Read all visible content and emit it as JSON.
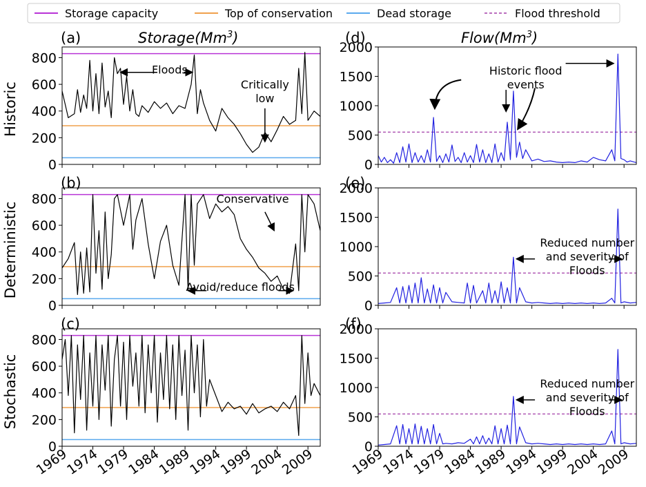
{
  "legend": {
    "items": [
      {
        "label": "Storage capacity",
        "color": "#b833d6",
        "dashed": false
      },
      {
        "label": "Top of conservation",
        "color": "#f0a04c",
        "dashed": false
      },
      {
        "label": "Dead storage",
        "color": "#5aa9ee",
        "dashed": false
      },
      {
        "label": "Flood threshold",
        "color": "#a33ca8",
        "dashed": true
      }
    ]
  },
  "columns": {
    "storage_title": "Storage(Mm",
    "flow_title": "Flow(Mm",
    "unit_exponent": "3"
  },
  "rows": [
    "Historic",
    "Deterministic",
    "Stochastic"
  ],
  "chart_data": [
    {
      "type": "line",
      "panel": "(a)",
      "title": "Storage(Mm3)",
      "row": "Historic",
      "xlabel": "",
      "ylabel": "Historic",
      "xlim": [
        1969,
        2011
      ],
      "ylim": [
        0,
        880
      ],
      "xticks": [
        1969,
        1974,
        1979,
        1984,
        1989,
        1994,
        1999,
        2004,
        2009
      ],
      "yticks": [
        0,
        200,
        400,
        600,
        800
      ],
      "reference_lines": {
        "Storage capacity": 830,
        "Top of conservation": 290,
        "Dead storage": 50
      },
      "series": [
        {
          "x": [
            1969.0,
            1970.0,
            1971.0,
            1971.5,
            1972.0,
            1972.5,
            1973.0,
            1973.5,
            1974.0,
            1974.5,
            1975.0,
            1975.5,
            1976.0,
            1976.5,
            1977.0,
            1977.5,
            1978.0,
            1978.5,
            1979.0,
            1979.5,
            1980.0,
            1980.5,
            1981.0,
            1981.5,
            1982.0,
            1983.0,
            1984.0,
            1985.0,
            1986.0,
            1987.0,
            1988.0,
            1989.0,
            1990.0,
            1990.5,
            1991.0,
            1991.5,
            1992.0,
            1993.0,
            1994.0,
            1995.0,
            1996.0,
            1997.0,
            1998.0,
            1999.0,
            2000.0,
            2001.0,
            2002.0,
            2003.0,
            2004.0,
            2005.0,
            2006.0,
            2007.0,
            2007.5,
            2008.0,
            2008.5,
            2009.0,
            2010.0,
            2011.0
          ],
          "values": [
            550,
            350,
            380,
            560,
            390,
            520,
            420,
            780,
            400,
            680,
            380,
            760,
            430,
            550,
            350,
            800,
            680,
            720,
            450,
            660,
            400,
            560,
            380,
            360,
            440,
            390,
            470,
            420,
            460,
            380,
            440,
            420,
            600,
            820,
            380,
            560,
            460,
            330,
            250,
            420,
            350,
            300,
            230,
            150,
            90,
            130,
            240,
            170,
            260,
            360,
            300,
            330,
            720,
            380,
            840,
            330,
            400,
            360
          ]
        }
      ],
      "annotations": [
        {
          "text": "Floods",
          "x": 1986.5,
          "y": 680
        },
        {
          "text": "Critically low",
          "x": 2002,
          "y": 570
        }
      ]
    },
    {
      "type": "line",
      "panel": "(b)",
      "title": "",
      "row": "Deterministic",
      "xlabel": "",
      "ylabel": "Deterministic",
      "xlim": [
        1969,
        2011
      ],
      "ylim": [
        0,
        880
      ],
      "xticks": [
        1969,
        1974,
        1979,
        1984,
        1989,
        1994,
        1999,
        2004,
        2009
      ],
      "yticks": [
        0,
        200,
        400,
        600,
        800
      ],
      "reference_lines": {
        "Storage capacity": 830,
        "Top of conservation": 290,
        "Dead storage": 50
      },
      "series": [
        {
          "x": [
            1969.0,
            1970.0,
            1971.0,
            1971.5,
            1972.0,
            1972.5,
            1973.0,
            1973.5,
            1974.0,
            1974.5,
            1975.0,
            1975.5,
            1976.0,
            1976.5,
            1977.0,
            1977.5,
            1978.0,
            1979.0,
            1980.0,
            1980.5,
            1981.0,
            1982.0,
            1983.0,
            1984.0,
            1985.0,
            1986.0,
            1987.0,
            1988.0,
            1989.0,
            1989.5,
            1990.0,
            1990.5,
            1991.0,
            1992.0,
            1993.0,
            1994.0,
            1995.0,
            1996.0,
            1997.0,
            1998.0,
            1999.0,
            2000.0,
            2001.0,
            2002.0,
            2003.0,
            2004.0,
            2005.0,
            2006.0,
            2007.0,
            2007.5,
            2008.0,
            2008.5,
            2009.0,
            2010.0,
            2011.0
          ],
          "values": [
            280,
            350,
            470,
            80,
            400,
            90,
            430,
            100,
            830,
            240,
            560,
            120,
            700,
            200,
            380,
            800,
            830,
            600,
            830,
            420,
            640,
            800,
            460,
            200,
            480,
            600,
            300,
            150,
            830,
            110,
            830,
            300,
            760,
            830,
            650,
            760,
            700,
            740,
            680,
            500,
            420,
            360,
            280,
            240,
            180,
            220,
            120,
            90,
            460,
            110,
            830,
            400,
            830,
            760,
            560
          ]
        }
      ],
      "annotations": [
        {
          "text": "Conservative",
          "x": 2000,
          "y": 770
        },
        {
          "text": "Avoid/reduce floods",
          "x": 1998,
          "y": 110
        }
      ]
    },
    {
      "type": "line",
      "panel": "(c)",
      "title": "",
      "row": "Stochastic",
      "xlabel": "",
      "ylabel": "Stochastic",
      "xlim": [
        1969,
        2011
      ],
      "ylim": [
        0,
        880
      ],
      "xticks": [
        1969,
        1974,
        1979,
        1984,
        1989,
        1994,
        1999,
        2004,
        2009
      ],
      "yticks": [
        0,
        200,
        400,
        600,
        800
      ],
      "reference_lines": {
        "Storage capacity": 830,
        "Top of conservation": 290,
        "Dead storage": 50
      },
      "series": [
        {
          "x": [
            1969.0,
            1969.5,
            1970.0,
            1970.5,
            1971.0,
            1971.5,
            1972.0,
            1972.5,
            1973.0,
            1973.5,
            1974.0,
            1974.5,
            1975.0,
            1975.5,
            1976.0,
            1976.5,
            1977.0,
            1977.5,
            1978.0,
            1978.5,
            1979.0,
            1979.5,
            1980.0,
            1980.5,
            1981.0,
            1981.5,
            1982.0,
            1982.5,
            1983.0,
            1983.5,
            1984.0,
            1984.5,
            1985.0,
            1985.5,
            1986.0,
            1986.5,
            1987.0,
            1987.5,
            1988.0,
            1988.5,
            1989.0,
            1989.5,
            1990.0,
            1990.5,
            1991.0,
            1991.5,
            1992.0,
            1992.5,
            1993.0,
            1994.0,
            1995.0,
            1996.0,
            1997.0,
            1998.0,
            1999.0,
            2000.0,
            2001.0,
            2002.0,
            2003.0,
            2004.0,
            2005.0,
            2006.0,
            2007.0,
            2007.5,
            2008.0,
            2008.5,
            2009.0,
            2009.5,
            2010.0,
            2011.0
          ],
          "values": [
            650,
            800,
            380,
            830,
            100,
            760,
            350,
            830,
            120,
            700,
            300,
            830,
            200,
            760,
            420,
            830,
            150,
            650,
            830,
            300,
            780,
            200,
            830,
            450,
            700,
            300,
            830,
            250,
            760,
            400,
            830,
            180,
            700,
            350,
            830,
            280,
            760,
            200,
            830,
            380,
            720,
            120,
            830,
            400,
            760,
            220,
            800,
            300,
            500,
            380,
            260,
            330,
            280,
            300,
            240,
            320,
            250,
            280,
            300,
            260,
            330,
            280,
            380,
            80,
            830,
            320,
            700,
            380,
            470,
            380
          ]
        }
      ],
      "annotations": []
    },
    {
      "type": "line",
      "panel": "(d)",
      "title": "Flow(Mm3)",
      "row": "Historic",
      "xlabel": "",
      "ylabel": "",
      "xlim": [
        1969,
        2011
      ],
      "ylim": [
        0,
        2000
      ],
      "xticks": [
        1969,
        1974,
        1979,
        1984,
        1989,
        1994,
        1999,
        2004,
        2009
      ],
      "yticks": [
        0,
        500,
        1000,
        1500,
        2000
      ],
      "reference_lines": {
        "Flood threshold": 550
      },
      "series": [
        {
          "x": [
            1969.0,
            1969.5,
            1970.0,
            1970.5,
            1971.0,
            1971.5,
            1972.0,
            1972.5,
            1973.0,
            1973.5,
            1974.0,
            1974.5,
            1975.0,
            1975.5,
            1976.0,
            1976.5,
            1977.0,
            1977.5,
            1978.0,
            1978.5,
            1979.0,
            1979.5,
            1980.0,
            1980.5,
            1981.0,
            1981.5,
            1982.0,
            1982.5,
            1983.0,
            1983.5,
            1984.0,
            1984.5,
            1985.0,
            1985.5,
            1986.0,
            1986.5,
            1987.0,
            1987.5,
            1988.0,
            1988.5,
            1989.0,
            1989.5,
            1990.0,
            1990.5,
            1991.0,
            1991.5,
            1992.0,
            1992.5,
            1993.0,
            1994.0,
            1995.0,
            1996.0,
            1997.0,
            1998.0,
            1999.0,
            2000.0,
            2001.0,
            2002.0,
            2003.0,
            2004.0,
            2005.0,
            2006.0,
            2007.0,
            2007.5,
            2008.0,
            2008.5,
            2009.0,
            2009.5,
            2010.0,
            2011.0
          ],
          "values": [
            150,
            40,
            120,
            30,
            80,
            20,
            200,
            30,
            300,
            40,
            350,
            30,
            200,
            40,
            150,
            30,
            250,
            40,
            800,
            50,
            150,
            30,
            180,
            40,
            330,
            50,
            120,
            30,
            200,
            40,
            150,
            30,
            340,
            40,
            250,
            30,
            180,
            30,
            350,
            40,
            200,
            60,
            720,
            80,
            1250,
            120,
            380,
            100,
            250,
            60,
            90,
            50,
            60,
            40,
            30,
            40,
            30,
            60,
            40,
            120,
            80,
            60,
            250,
            60,
            1880,
            100,
            80,
            40,
            60,
            30
          ]
        }
      ],
      "annotations": [
        {
          "text": "Historic flood events",
          "x": 1993,
          "y": 1530
        }
      ]
    },
    {
      "type": "line",
      "panel": "(e)",
      "title": "",
      "row": "Deterministic",
      "xlabel": "",
      "ylabel": "",
      "xlim": [
        1969,
        2011
      ],
      "ylim": [
        0,
        2000
      ],
      "xticks": [
        1969,
        1974,
        1979,
        1984,
        1989,
        1994,
        1999,
        2004,
        2009
      ],
      "yticks": [
        0,
        500,
        1000,
        1500,
        2000
      ],
      "reference_lines": {
        "Flood threshold": 550
      },
      "series": [
        {
          "x": [
            1969.0,
            1970.0,
            1971.0,
            1972.0,
            1972.5,
            1973.0,
            1973.5,
            1974.0,
            1974.5,
            1975.0,
            1975.5,
            1976.0,
            1976.5,
            1977.0,
            1977.5,
            1978.0,
            1978.5,
            1979.0,
            1979.5,
            1980.0,
            1981.0,
            1982.0,
            1983.0,
            1983.5,
            1984.0,
            1984.5,
            1985.0,
            1986.0,
            1986.5,
            1987.0,
            1987.5,
            1988.0,
            1988.5,
            1989.0,
            1989.5,
            1990.0,
            1990.5,
            1991.0,
            1991.5,
            1992.0,
            1993.0,
            1994.0,
            1995.0,
            1996.0,
            1997.0,
            1998.0,
            1999.0,
            2000.0,
            2001.0,
            2002.0,
            2003.0,
            2004.0,
            2005.0,
            2006.0,
            2007.0,
            2007.5,
            2008.0,
            2008.5,
            2009.0,
            2010.0,
            2011.0
          ],
          "values": [
            30,
            40,
            50,
            300,
            40,
            320,
            40,
            340,
            40,
            380,
            40,
            470,
            40,
            280,
            40,
            350,
            40,
            300,
            40,
            220,
            60,
            50,
            40,
            380,
            40,
            340,
            40,
            250,
            40,
            380,
            40,
            250,
            40,
            400,
            40,
            300,
            40,
            820,
            40,
            300,
            60,
            40,
            50,
            40,
            30,
            40,
            30,
            40,
            30,
            40,
            30,
            40,
            30,
            40,
            120,
            40,
            1640,
            40,
            60,
            40,
            50
          ]
        }
      ],
      "annotations": [
        {
          "text": "Reduced number and severity of Floods",
          "x": 2003,
          "y": 1000
        }
      ]
    },
    {
      "type": "line",
      "panel": "(f)",
      "title": "",
      "row": "Stochastic",
      "xlabel": "",
      "ylabel": "",
      "xlim": [
        1969,
        2011
      ],
      "ylim": [
        0,
        2000
      ],
      "xticks": [
        1969,
        1974,
        1979,
        1984,
        1989,
        1994,
        1999,
        2004,
        2009
      ],
      "yticks": [
        0,
        500,
        1000,
        1500,
        2000
      ],
      "reference_lines": {
        "Flood threshold": 550
      },
      "series": [
        {
          "x": [
            1969.0,
            1970.0,
            1971.0,
            1972.0,
            1972.5,
            1973.0,
            1973.5,
            1974.0,
            1974.5,
            1975.0,
            1975.5,
            1976.0,
            1976.5,
            1977.0,
            1977.5,
            1978.0,
            1978.5,
            1979.0,
            1979.5,
            1980.0,
            1981.0,
            1982.0,
            1983.0,
            1984.0,
            1984.5,
            1985.0,
            1985.5,
            1986.0,
            1986.5,
            1987.0,
            1987.5,
            1988.0,
            1988.5,
            1989.0,
            1989.5,
            1990.0,
            1990.5,
            1991.0,
            1991.5,
            1992.0,
            1993.0,
            1994.0,
            1995.0,
            1996.0,
            1997.0,
            1998.0,
            1999.0,
            2000.0,
            2001.0,
            2002.0,
            2003.0,
            2004.0,
            2005.0,
            2006.0,
            2007.0,
            2007.5,
            2008.0,
            2008.5,
            2009.0,
            2010.0,
            2011.0
          ],
          "values": [
            20,
            30,
            40,
            350,
            40,
            370,
            40,
            300,
            40,
            380,
            40,
            340,
            40,
            300,
            40,
            370,
            40,
            220,
            40,
            50,
            40,
            60,
            50,
            120,
            40,
            160,
            40,
            180,
            40,
            140,
            40,
            350,
            40,
            300,
            40,
            360,
            40,
            850,
            40,
            330,
            60,
            40,
            50,
            40,
            30,
            40,
            30,
            40,
            30,
            40,
            30,
            40,
            30,
            40,
            260,
            40,
            1650,
            40,
            60,
            40,
            50
          ]
        }
      ],
      "annotations": [
        {
          "text": "Reduced number and severity of Floods",
          "x": 2003,
          "y": 1000
        }
      ]
    }
  ]
}
